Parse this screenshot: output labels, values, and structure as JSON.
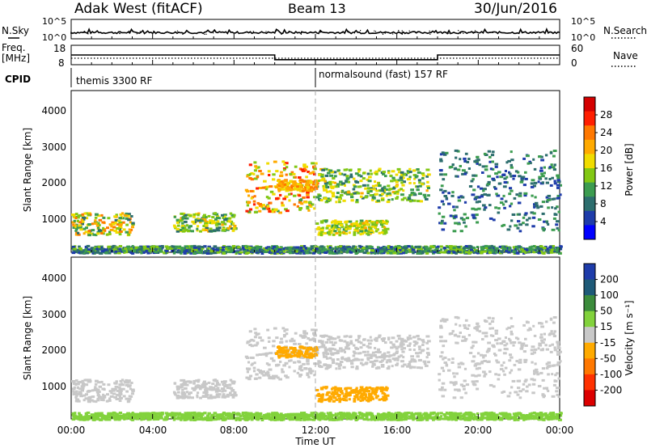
{
  "header": {
    "station": "Adak West (fitACF)",
    "beam": "Beam 13",
    "date": "30/Jun/2016"
  },
  "top_panels": {
    "nsky_label": "N.Sky",
    "nsky_ticks": [
      "10^5",
      "10^0"
    ],
    "nsearch_label": "N.Search",
    "nsearch_ticks": [
      "10^5",
      "10^0"
    ],
    "freq_label_line1": "Freq.",
    "freq_label_line2": "[MHz]",
    "freq_ticks": [
      "18",
      "8"
    ],
    "nave_label": "Nave",
    "nave_ticks": [
      "60",
      "0"
    ],
    "cpid_label": "CPID",
    "cpid_segments": [
      {
        "start_hour": 0.0,
        "label": "themis 3300 RF"
      },
      {
        "start_hour": 12.0,
        "label": "normalsound (fast) 157 RF"
      }
    ],
    "freq_steps": [
      {
        "from": 0.0,
        "to": 10.0,
        "mhz": 13.0
      },
      {
        "from": 10.0,
        "to": 18.0,
        "mhz": 10.6
      },
      {
        "from": 18.0,
        "to": 24.0,
        "mhz": 13.0
      }
    ]
  },
  "power_panel": {
    "ylabel": "Slant Range [km]",
    "yticks": [
      "4000",
      "3000",
      "2000",
      "1000"
    ],
    "colorbar_label": "Power [dB]",
    "colorbar_ticks": [
      "28",
      "24",
      "20",
      "16",
      "12",
      "8",
      "4"
    ],
    "colorbar_colors": [
      "#d40000",
      "#ff1e00",
      "#ff7800",
      "#ffaa00",
      "#f0dc00",
      "#82c814",
      "#3c9c50",
      "#2d6e6e",
      "#1e3caa",
      "#0000ff"
    ]
  },
  "velocity_panel": {
    "ylabel": "Slant Range [km]",
    "yticks": [
      "4000",
      "3000",
      "2000",
      "1000"
    ],
    "colorbar_label": "Velocity [m s⁻¹]",
    "colorbar_ticks": [
      "200",
      "100",
      "50",
      "15",
      "-15",
      "-50",
      "-100",
      "-200"
    ],
    "colorbar_colors": [
      "#1e3caa",
      "#1e5a78",
      "#3c8c3c",
      "#82d23c",
      "#c8c8c8",
      "#ffaa00",
      "#ff7800",
      "#ff3200",
      "#dc0000"
    ]
  },
  "x_axis": {
    "label": "Time UT",
    "ticks": [
      "00:00",
      "04:00",
      "08:00",
      "12:00",
      "16:00",
      "20:00",
      "00:00"
    ]
  },
  "chart_data": {
    "type": "heatmap",
    "x_range_hours": [
      0,
      24
    ],
    "y_range_km": [
      200,
      4600
    ],
    "power_colorbar_range_db": [
      0,
      32
    ],
    "velocity_colorbar_range": [
      -250,
      250
    ],
    "scatter_regions": [
      {
        "region": "early near-range echo",
        "t": [
          0.0,
          3.0
        ],
        "range_km": [
          700,
          1300
        ],
        "power_db": [
          8,
          24
        ],
        "velocity": [
          -15,
          15
        ]
      },
      {
        "region": "morning near-range echo",
        "t": [
          5.0,
          8.0
        ],
        "range_km": [
          800,
          1300
        ],
        "power_db": [
          8,
          20
        ],
        "velocity": [
          -15,
          15
        ]
      },
      {
        "region": "main far-range echo",
        "t": [
          8.5,
          12.0
        ],
        "range_km": [
          1300,
          2700
        ],
        "power_db": [
          12,
          28
        ],
        "velocity": [
          -15,
          15
        ]
      },
      {
        "region": "main far-range echo (positive)",
        "t": [
          10.0,
          12.0
        ],
        "range_km": [
          1900,
          2200
        ],
        "power_db": [
          16,
          24
        ],
        "velocity": [
          -50,
          -15
        ]
      },
      {
        "region": "afternoon far-range echo",
        "t": [
          12.0,
          17.5
        ],
        "range_km": [
          1600,
          2500
        ],
        "power_db": [
          8,
          20
        ],
        "velocity": [
          -15,
          15
        ]
      },
      {
        "region": "afternoon near-range echo",
        "t": [
          12.0,
          15.5
        ],
        "range_km": [
          700,
          1100
        ],
        "power_db": [
          12,
          20
        ],
        "velocity": [
          -50,
          -15
        ]
      },
      {
        "region": "evening echo",
        "t": [
          18.0,
          24.0
        ],
        "range_km": [
          800,
          3000
        ],
        "power_db": [
          4,
          12
        ],
        "velocity": [
          -15,
          15
        ]
      },
      {
        "region": "ground scatter",
        "t": [
          0.0,
          24.0
        ],
        "range_km": [
          200,
          400
        ],
        "power_db": [
          4,
          16
        ],
        "velocity": [
          15,
          50
        ]
      }
    ]
  }
}
